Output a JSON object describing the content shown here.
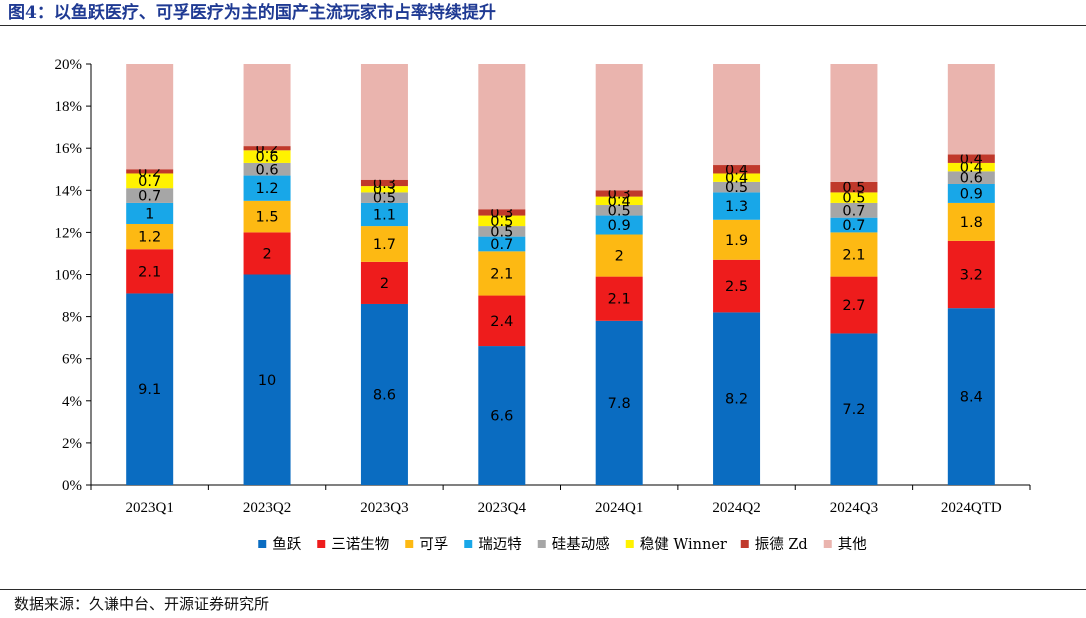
{
  "title": "图4：以鱼跃医疗、可孚医疗为主的国产主流玩家市占率持续提升",
  "source": "数据来源：久谦中台、开源证券研究所",
  "chart_data": {
    "type": "bar",
    "stacked": true,
    "categories": [
      "2023Q1",
      "2023Q2",
      "2023Q3",
      "2023Q4",
      "2024Q1",
      "2024Q2",
      "2024Q3",
      "2024QTD"
    ],
    "ylim": [
      0,
      20
    ],
    "yticks": [
      0,
      2,
      4,
      6,
      8,
      10,
      12,
      14,
      16,
      18,
      20
    ],
    "ytick_labels": [
      "0%",
      "2%",
      "4%",
      "6%",
      "8%",
      "10%",
      "12%",
      "14%",
      "16%",
      "18%",
      "20%"
    ],
    "legend_position": "bottom",
    "series": [
      {
        "name": "鱼跃",
        "color": "#0a6cc1",
        "values": [
          9.1,
          10,
          8.6,
          6.6,
          7.8,
          8.2,
          7.2,
          8.4
        ],
        "labels": [
          "9.1",
          "10",
          "8.6",
          "6.6",
          "7.8",
          "8.2",
          "7.2",
          "8.4"
        ]
      },
      {
        "name": "三诺生物",
        "color": "#ee1c1c",
        "values": [
          2.1,
          2,
          2,
          2.4,
          2.1,
          2.5,
          2.7,
          3.2
        ],
        "labels": [
          "2.1",
          "2",
          "2",
          "2.4",
          "2.1",
          "2.5",
          "2.7",
          "3.2"
        ]
      },
      {
        "name": "可孚",
        "color": "#fdb913",
        "values": [
          1.2,
          1.5,
          1.7,
          2.1,
          2,
          1.9,
          2.1,
          1.8
        ],
        "labels": [
          "1.2",
          "1.5",
          "1.7",
          "2.1",
          "2",
          "1.9",
          "2.1",
          "1.8"
        ]
      },
      {
        "name": "瑞迈特",
        "color": "#18a7e8",
        "values": [
          1,
          1.2,
          1.1,
          0.7,
          0.9,
          1.3,
          0.7,
          0.9
        ],
        "labels": [
          "1",
          "1.2",
          "1.1",
          "0.7",
          "0.9",
          "1.3",
          "0.7",
          "0.9"
        ]
      },
      {
        "name": "硅基动感",
        "color": "#a6a6a6",
        "values": [
          0.7,
          0.6,
          0.5,
          0.5,
          0.5,
          0.5,
          0.7,
          0.6
        ],
        "labels": [
          "0.7",
          "0.6",
          "0.5",
          "0.5",
          "0.5",
          "0.5",
          "0.7",
          "0.6"
        ]
      },
      {
        "name": "稳健 Winner",
        "color": "#fff200",
        "values": [
          0.7,
          0.6,
          0.3,
          0.5,
          0.4,
          0.4,
          0.5,
          0.4
        ],
        "labels": [
          "0.7",
          "0.6",
          "0.3",
          "0.5",
          "0.4",
          "0.4",
          "0.5",
          "0.4"
        ]
      },
      {
        "name": "振德 Zd",
        "color": "#c0392b",
        "values": [
          0.2,
          0.2,
          0.3,
          0.3,
          0.3,
          0.4,
          0.5,
          0.4
        ],
        "labels": [
          "0.2",
          "0.2",
          "0.3",
          "0.3",
          "0.3",
          "0.4",
          "0.5",
          "0.4"
        ]
      },
      {
        "name": "其他",
        "color": "#eab4ae",
        "values": [
          5.0,
          3.9,
          5.5,
          6.9,
          6.0,
          4.8,
          5.6,
          4.3
        ],
        "labels": []
      }
    ]
  }
}
